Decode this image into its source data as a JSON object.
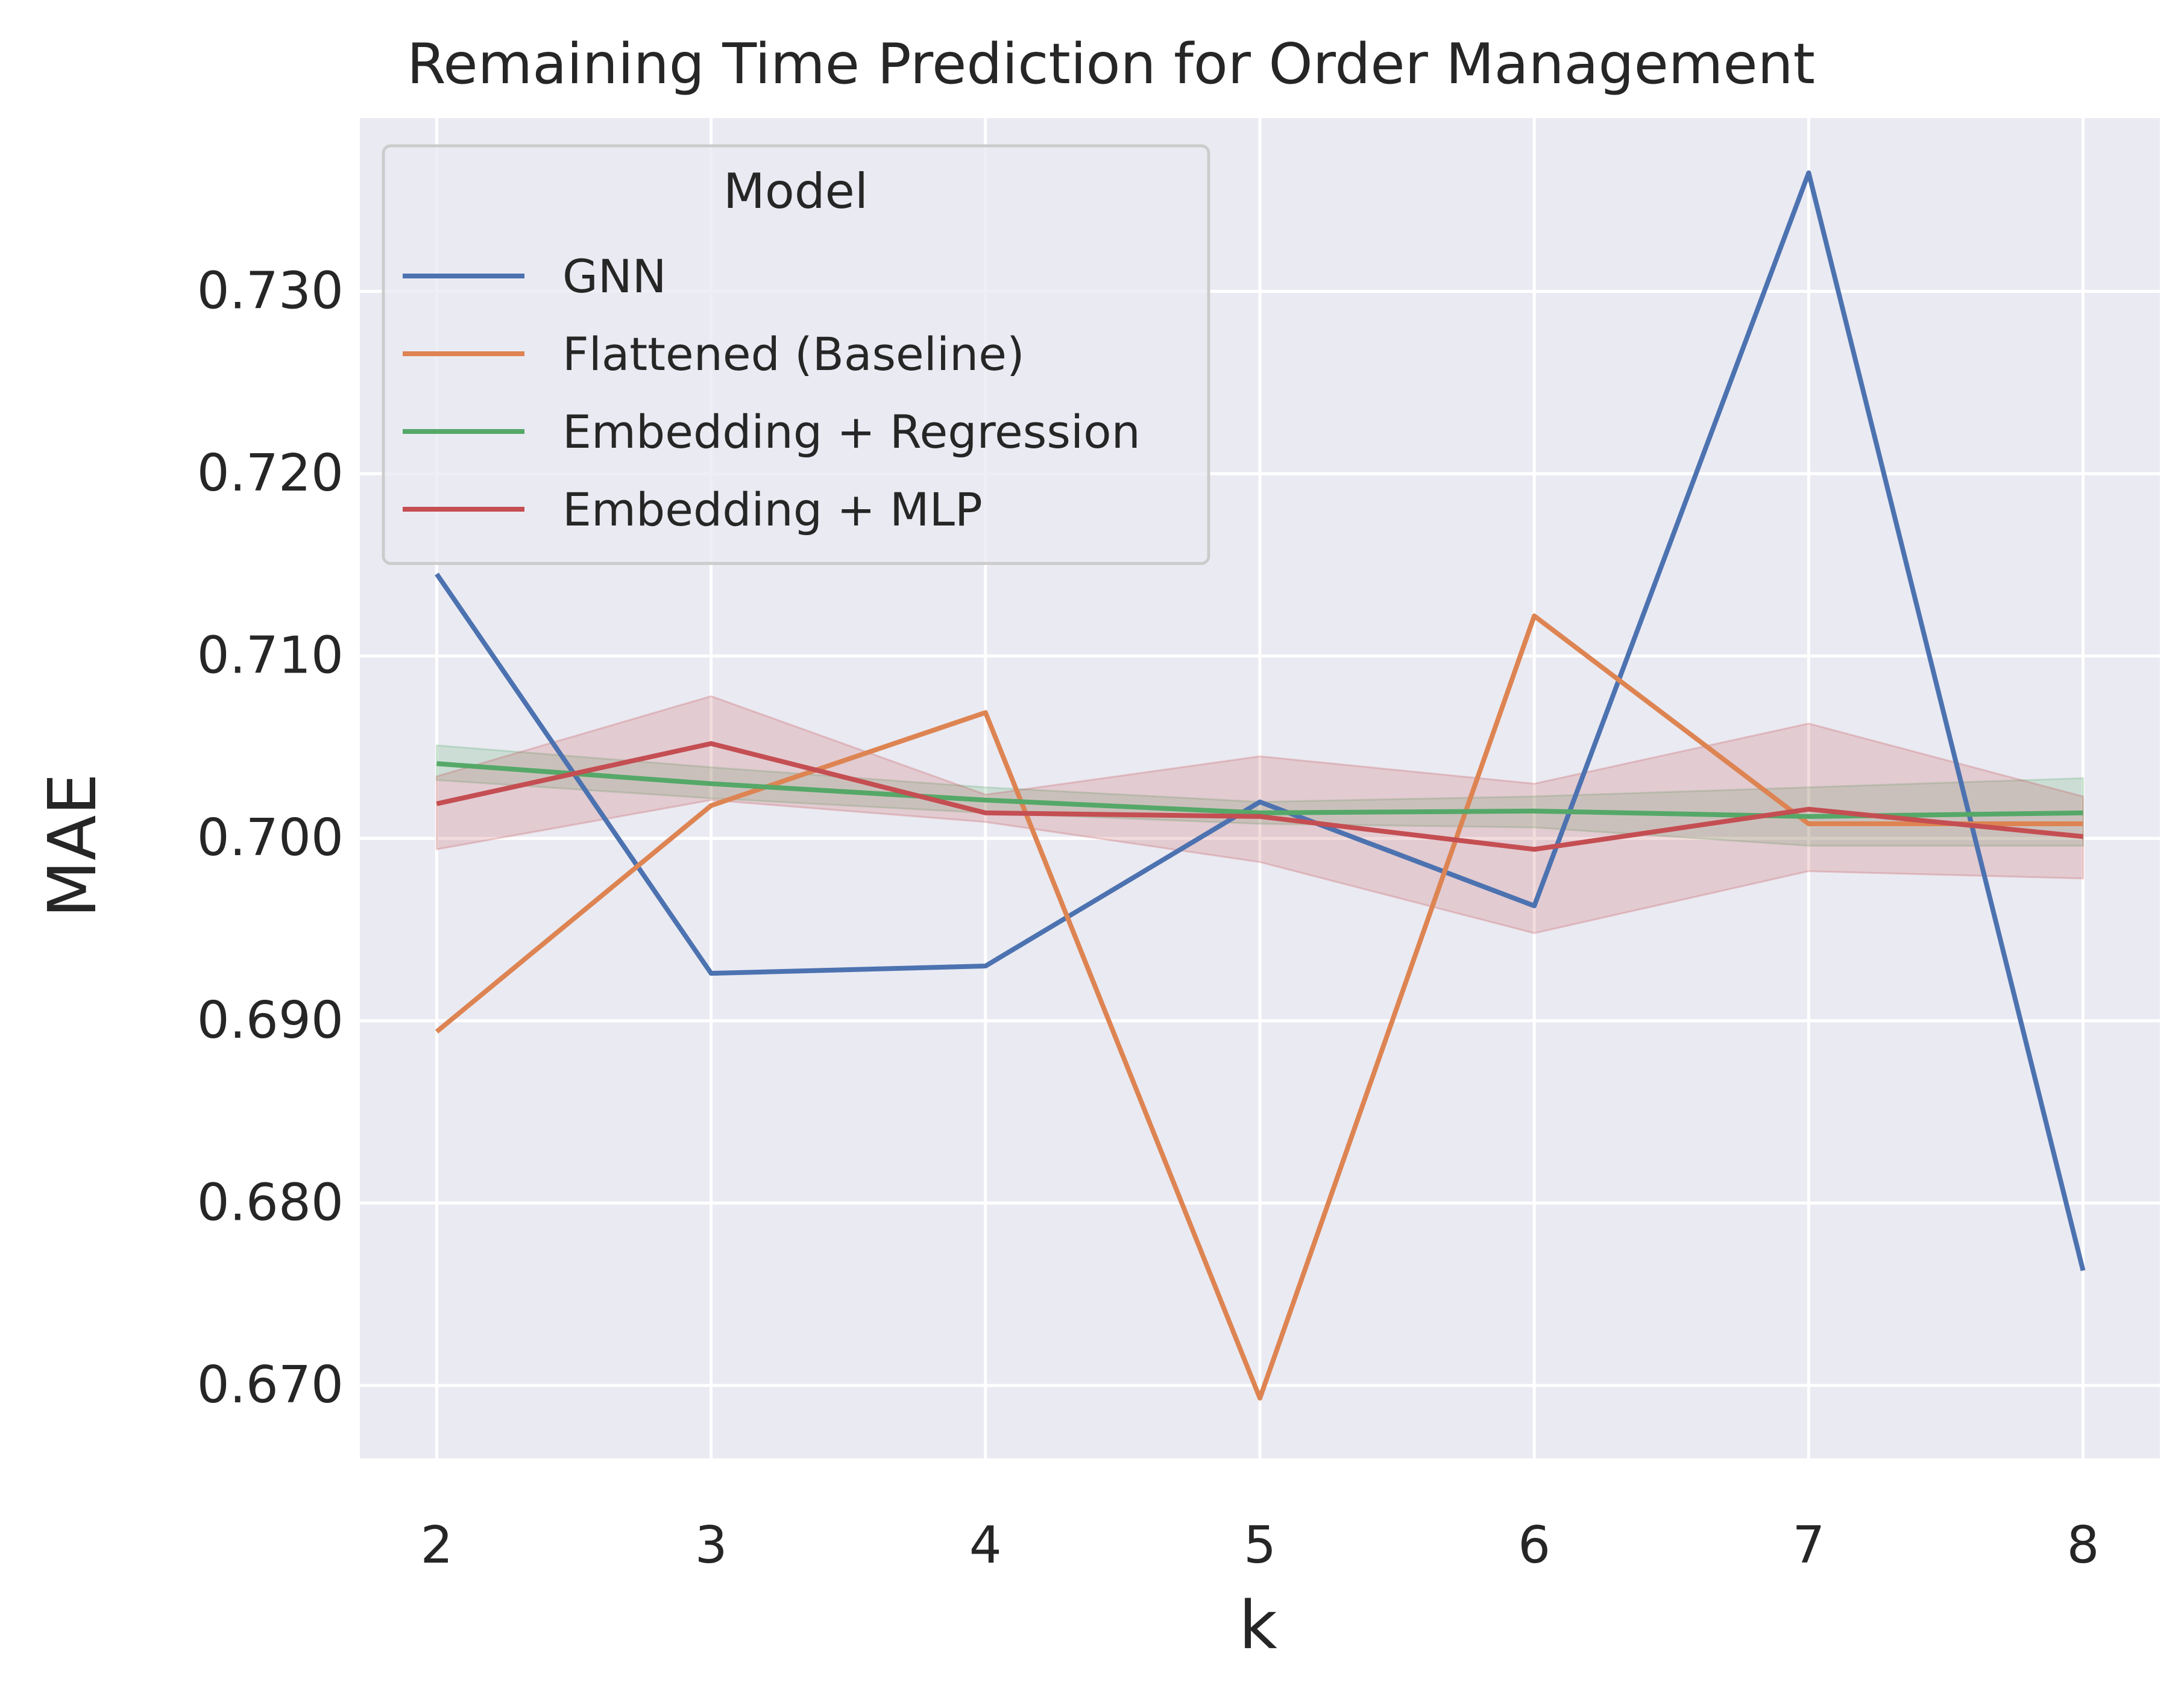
{
  "chart_data": {
    "type": "line",
    "title": "Remaining Time Prediction for Order Management",
    "xlabel": "k",
    "ylabel": "MAE",
    "x": [
      2,
      3,
      4,
      5,
      6,
      7,
      8
    ],
    "xlim": [
      1.72,
      8.28
    ],
    "ylim": [
      0.666,
      0.7395
    ],
    "xticks": [
      "2",
      "3",
      "4",
      "5",
      "6",
      "7",
      "8"
    ],
    "yticks": [
      {
        "value": 0.67,
        "label": "0.670"
      },
      {
        "value": 0.68,
        "label": "0.680"
      },
      {
        "value": 0.69,
        "label": "0.690"
      },
      {
        "value": 0.7,
        "label": "0.700"
      },
      {
        "value": 0.71,
        "label": "0.710"
      },
      {
        "value": 0.72,
        "label": "0.720"
      },
      {
        "value": 0.73,
        "label": "0.730"
      }
    ],
    "grid": true,
    "legend": {
      "title": "Model",
      "placement": "top-left"
    },
    "series": [
      {
        "name": "GNN",
        "color": "#4c72b0",
        "values": [
          0.7145,
          0.6926,
          0.693,
          0.702,
          0.6963,
          0.7365,
          0.6763
        ]
      },
      {
        "name": "Flattened (Baseline)",
        "color": "#dd8452",
        "values": [
          0.6894,
          0.7018,
          0.7069,
          0.6693,
          0.7122,
          0.7008,
          0.7008
        ]
      },
      {
        "name": "Embedding + Regression",
        "color": "#55a868",
        "values": [
          0.7041,
          0.703,
          0.7021,
          0.7014,
          0.7015,
          0.7012,
          0.7014
        ],
        "band_lower": [
          0.7032,
          0.7022,
          0.7014,
          0.7008,
          0.7006,
          0.6996,
          0.6996
        ],
        "band_upper": [
          0.7051,
          0.7039,
          0.7028,
          0.702,
          0.7023,
          0.7028,
          0.7033
        ]
      },
      {
        "name": "Embedding + MLP",
        "color": "#c44e52",
        "values": [
          0.7019,
          0.7052,
          0.7014,
          0.7012,
          0.6994,
          0.7016,
          0.7001
        ],
        "band_lower": [
          0.6994,
          0.7021,
          0.7009,
          0.6987,
          0.6948,
          0.6982,
          0.6978
        ],
        "band_upper": [
          0.7034,
          0.7078,
          0.7024,
          0.7045,
          0.703,
          0.7063,
          0.7023
        ]
      }
    ]
  },
  "style": {
    "plot_background": "#eaeaf2",
    "grid_color": "#ffffff",
    "text_color": "#262626"
  }
}
